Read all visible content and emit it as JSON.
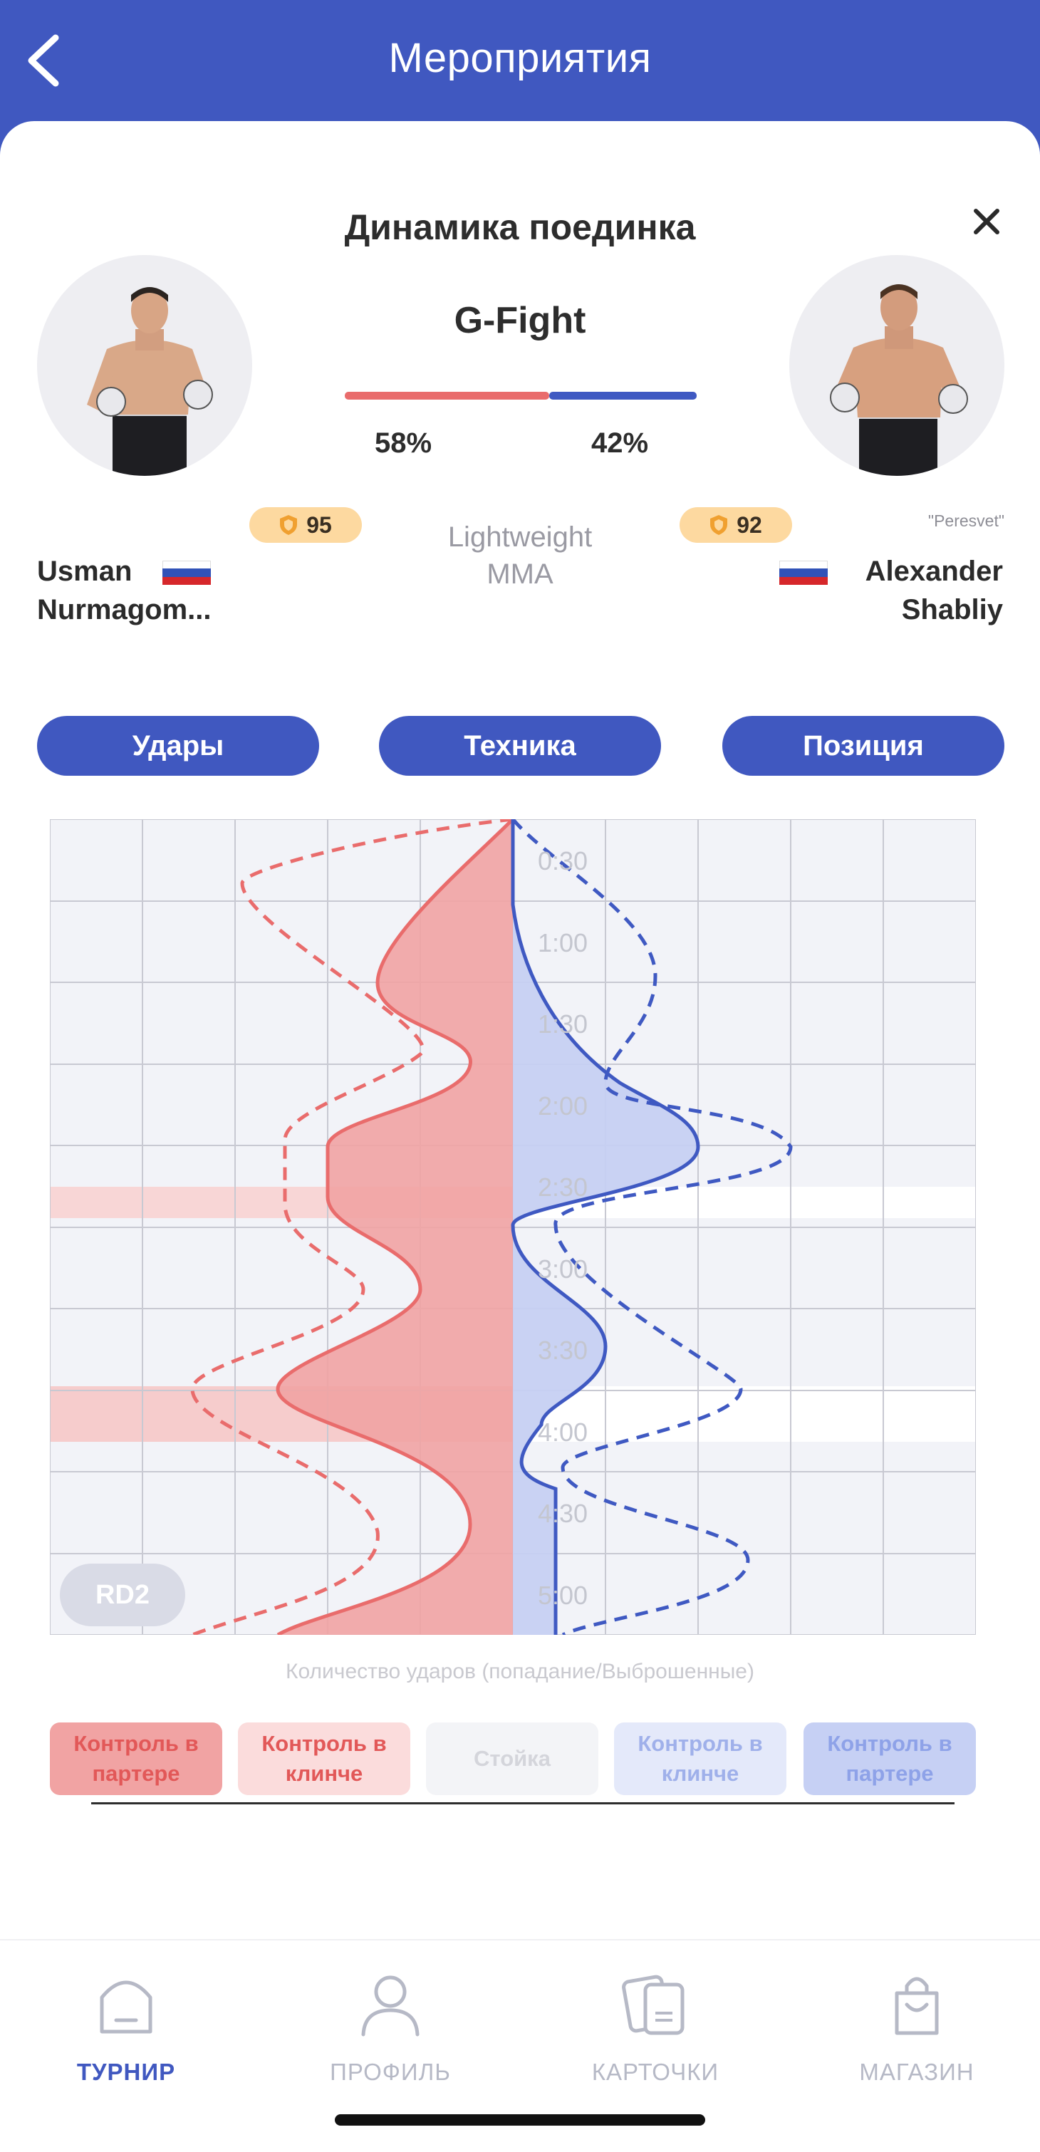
{
  "header": {
    "title": "Мероприятия"
  },
  "modal": {
    "title": "Динамика поединка"
  },
  "promotion": "G-Fight",
  "odds": {
    "left_pct": "58%",
    "right_pct": "42%",
    "left_share": 0.58
  },
  "division": {
    "weight": "Lightweight",
    "sport": "MMA"
  },
  "fighter_left": {
    "first_name": "Usman",
    "last_name": "Nurmagom...",
    "rating": "95"
  },
  "fighter_right": {
    "nickname": "\"Peresvet\"",
    "first_name": "Alexander",
    "last_name": "Shabliy",
    "rating": "92"
  },
  "tabs": [
    {
      "label": "Удары"
    },
    {
      "label": "Техника"
    },
    {
      "label": "Позиция"
    }
  ],
  "chart_data": {
    "type": "area",
    "orientation": "vertical time axis, mirrored left/right",
    "round_badge": "RD2",
    "time_labels": [
      "0:30",
      "1:00",
      "1:30",
      "2:00",
      "2:30",
      "3:00",
      "3:30",
      "4:00",
      "4:30",
      "5:00"
    ],
    "caption": "Количество ударов (попадание/Выброшенные)",
    "grid": true
  },
  "legend": [
    {
      "label": "Контроль в партере"
    },
    {
      "label": "Контроль в клинче"
    },
    {
      "label": "Стойка"
    },
    {
      "label": "Контроль в клинче"
    },
    {
      "label": "Контроль в партере"
    }
  ],
  "nav": [
    {
      "label": "ТУРНИР",
      "icon": "tournament-icon"
    },
    {
      "label": "ПРОФИЛЬ",
      "icon": "profile-icon"
    },
    {
      "label": "КАРТОЧКИ",
      "icon": "cards-icon"
    },
    {
      "label": "МАГАЗИН",
      "icon": "shop-icon"
    }
  ],
  "colors": {
    "primary": "#4058c0",
    "red": "#e96c6c",
    "blue": "#3f59c2",
    "rating_bg": "#fdd9a0"
  }
}
